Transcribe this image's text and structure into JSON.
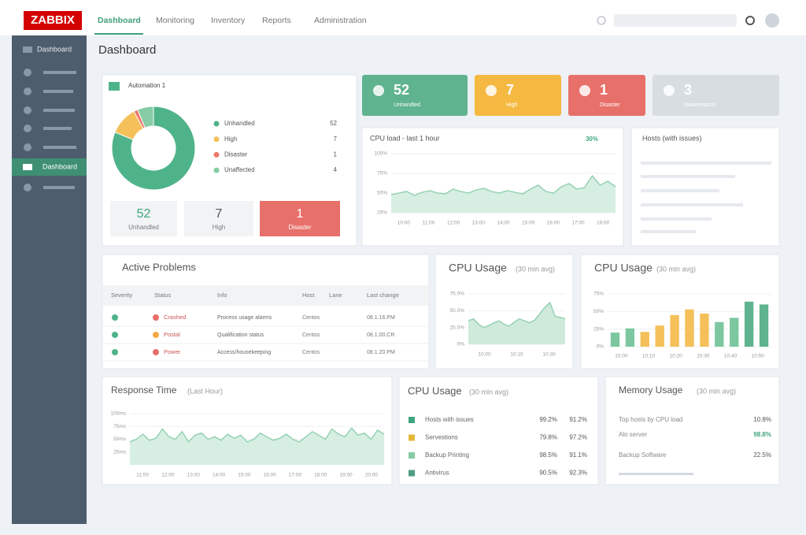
{
  "header": {
    "logo": "ZABBIX",
    "nav": [
      "Dashboard",
      "Monitoring",
      "Inventory",
      "Reports",
      "Administration"
    ]
  },
  "sidebar": {
    "items": [
      "Dashboard",
      "Dashboard"
    ]
  },
  "page_title": "Dashboard",
  "summary": {
    "title": "Automation 1",
    "donut": {
      "labels": [
        "Unhandled",
        "High",
        "Disaster",
        "Unaffected"
      ],
      "values": [
        52,
        7,
        1,
        4
      ],
      "colors": [
        "#4fb38a",
        "#f5c05a",
        "#ee7a6a",
        "#86cca4"
      ]
    },
    "boxes": [
      {
        "value": "52",
        "label": "Unhandled"
      },
      {
        "value": "7",
        "label": "High"
      },
      {
        "value": "1",
        "label": "Disaster"
      }
    ]
  },
  "tiles": [
    {
      "value": "52",
      "label": "Unhandled",
      "color": "#5fb38f"
    },
    {
      "value": "7",
      "label": "High",
      "color": "#f5b942"
    },
    {
      "value": "1",
      "label": "Disaster",
      "color": "#e8706a"
    },
    {
      "value": "3",
      "label": "Maintenance",
      "color": "#d8dde2"
    }
  ],
  "cpu_load": {
    "title": "CPU load - last 1 hour",
    "badge": "30%",
    "ylim": [
      25,
      100
    ],
    "yticks": [
      {
        "value": 100,
        "label": "100%"
      },
      {
        "value": 75,
        "label": "75%"
      },
      {
        "value": 50,
        "label": "50%"
      },
      {
        "value": 25,
        "label": "25%"
      }
    ],
    "xlabels": [
      "10:00",
      "11:00",
      "12:00",
      "13:00",
      "14:00",
      "15:00",
      "16:00",
      "17:00",
      "18:00"
    ],
    "values": [
      48,
      50,
      52,
      47,
      51,
      53,
      50,
      49,
      55,
      52,
      50,
      54,
      56,
      52,
      50,
      53,
      51,
      49,
      55,
      60,
      52,
      50,
      58,
      62,
      55,
      57,
      72,
      60,
      65,
      58
    ]
  },
  "hosts": {
    "title": "Hosts (with issues)"
  },
  "problems": {
    "title": "Active Problems",
    "columns": [
      "Severity",
      "Status",
      "Info",
      "Host",
      "Lane",
      "Last change"
    ],
    "rows": [
      {
        "status": "Crashed",
        "color": "#e8706a",
        "info": "Process usage alarms",
        "host": "Centos",
        "last": "08.1.16.PM"
      },
      {
        "status": "Postal",
        "color": "#f5a742",
        "info": "Qualification status",
        "host": "Centos",
        "last": "08.1.00.CR"
      },
      {
        "status": "Power",
        "color": "#e8706a",
        "info": "Access/housekeeping",
        "host": "Centos",
        "last": "08.1.20.PM"
      }
    ]
  },
  "cpu_line": {
    "title": "CPU Usage",
    "subtitle": "(30 min avg)",
    "ylim": [
      0,
      75
    ],
    "yticks": [
      {
        "value": 75,
        "label": "75.0%"
      },
      {
        "value": 50,
        "label": "50.0%"
      },
      {
        "value": 25,
        "label": "25.0%"
      },
      {
        "value": 0,
        "label": "0%"
      }
    ],
    "xlabels": [
      "10:00",
      "10:15",
      "10:30"
    ],
    "values": [
      35,
      38,
      30,
      25,
      28,
      32,
      35,
      30,
      27,
      33,
      38,
      35,
      32,
      36,
      45,
      55,
      62,
      42,
      40,
      38
    ]
  },
  "cpu_bar": {
    "title": "CPU Usage",
    "subtitle": "(30 min avg)",
    "ylim": [
      0,
      75
    ],
    "yticks": [
      {
        "value": 75,
        "label": "75%"
      },
      {
        "value": 50,
        "label": "50%"
      },
      {
        "value": 25,
        "label": "25%"
      },
      {
        "value": 0,
        "label": "0%"
      }
    ],
    "xlabels": [
      "10:00",
      "10:10",
      "10:20",
      "10:30",
      "10:40",
      "10:50"
    ],
    "values": [
      20,
      26,
      21,
      30,
      45,
      53,
      47,
      35,
      41,
      64,
      60
    ],
    "colors": [
      "#7cc7a0",
      "#7cc7a0",
      "#f5c05a",
      "#f5c05a",
      "#f5c05a",
      "#f5c05a",
      "#f5c05a",
      "#7cc7a0",
      "#7cc7a0",
      "#5fb38f",
      "#5fb38f"
    ]
  },
  "response": {
    "title": "Response Time",
    "subtitle": "(Last Hour)",
    "ylim": [
      0,
      100
    ],
    "yticks": [
      {
        "value": 100,
        "label": "100ms"
      },
      {
        "value": 75,
        "label": "75ms"
      },
      {
        "value": 50,
        "label": "50ms"
      },
      {
        "value": 25,
        "label": "25ms"
      }
    ],
    "xlabels": [
      "11:00",
      "12:00",
      "13:00",
      "14:00",
      "15:00",
      "16:00",
      "17:00",
      "18:00",
      "19:00",
      "20:00"
    ],
    "values": [
      45,
      50,
      60,
      48,
      52,
      70,
      55,
      50,
      65,
      45,
      58,
      62,
      50,
      55,
      48,
      60,
      52,
      58,
      45,
      50,
      62,
      55,
      48,
      52,
      60,
      50,
      45,
      55,
      65,
      58,
      50,
      70,
      60,
      55,
      72,
      58,
      62,
      50,
      68,
      60
    ]
  },
  "cpu_table": {
    "title": "CPU Usage",
    "subtitle": "(30 min avg)",
    "rows": [
      {
        "name": "Hosts with issues",
        "color": "#3fa57c",
        "a": "99.2%",
        "b": "91.2%"
      },
      {
        "name": "Servestions",
        "color": "#e5b83a",
        "a": "79.8%",
        "b": "97.2%"
      },
      {
        "name": "Backup Printing",
        "color": "#86cca4",
        "a": "98.5%",
        "b": "91.1%"
      },
      {
        "name": "Antivirus",
        "color": "#4f9e86",
        "a": "90.5%",
        "b": "92.3%"
      }
    ]
  },
  "memory": {
    "title": "Memory Usage",
    "subtitle": "(30 min avg)",
    "rows": [
      {
        "label": "Top hosts by CPU load",
        "value": "10.8%"
      },
      {
        "label": "Alo server",
        "value": "98.8%"
      },
      {
        "label": "Backup Software",
        "value": "22.5%"
      }
    ]
  }
}
